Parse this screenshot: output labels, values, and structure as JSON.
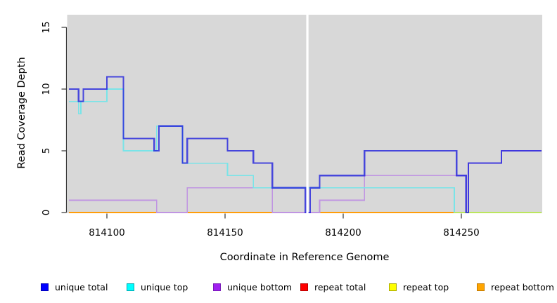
{
  "figure": {
    "x_axis": {
      "label": "Coordinate in Reference Genome",
      "tick_labels": [
        "814100",
        "814150",
        "814200",
        "814250"
      ],
      "ticks": [
        814100,
        814150,
        814200,
        814250
      ]
    },
    "y_axis": {
      "label": "Read Coverage Depth",
      "tick_labels": [
        "0",
        "5",
        "10",
        "15"
      ],
      "ticks": [
        0,
        5,
        10,
        15
      ]
    },
    "plot_background": "#d8d8d8",
    "outer_background": "#ffffff"
  },
  "chart_data": {
    "type": "line",
    "step": true,
    "title": "",
    "xlabel": "Coordinate in Reference Genome",
    "ylabel": "Read Coverage Depth",
    "x_range": [
      814084,
      814284
    ],
    "y_range": [
      0,
      16
    ],
    "x_ticks": [
      814100,
      814150,
      814200,
      814250
    ],
    "y_ticks": [
      0,
      5,
      10,
      15
    ],
    "grid": false,
    "legend_position": "bottom",
    "masked_region": {
      "x_start": 814184,
      "x_end": 814185.5,
      "color": "#ffffff",
      "note": "white vertical band, all series hidden; unique-total drops to 0 at its edges"
    },
    "series": [
      {
        "name": "repeat total",
        "color": "#dd2222",
        "opacity": 1,
        "width": 1.5,
        "points": [
          [
            814084,
            0
          ],
          [
            814247,
            0
          ]
        ]
      },
      {
        "name": "repeat bottom",
        "color": "#ff9d0a",
        "opacity": 1,
        "width": 1.8,
        "points": [
          [
            814084,
            0
          ],
          [
            814247,
            0
          ]
        ]
      },
      {
        "name": "unique bottom",
        "color": "#c095e2",
        "opacity": 1,
        "width": 1.7,
        "points": [
          [
            814084,
            1
          ],
          [
            814121,
            0
          ],
          [
            814134,
            2
          ],
          [
            814170,
            0
          ],
          [
            814190,
            1
          ],
          [
            814209,
            3
          ],
          [
            814252,
            0
          ],
          [
            814253,
            4
          ],
          [
            814267,
            5
          ],
          [
            814284,
            5
          ]
        ]
      },
      {
        "name": "unique top",
        "color": "#79e4e8",
        "opacity": 1,
        "width": 1.7,
        "points": [
          [
            814084,
            9
          ],
          [
            814088,
            8
          ],
          [
            814089,
            9
          ],
          [
            814100,
            10
          ],
          [
            814107,
            5
          ],
          [
            814121,
            7
          ],
          [
            814132,
            4
          ],
          [
            814151,
            3
          ],
          [
            814162,
            2
          ],
          [
            814247,
            0
          ],
          [
            814284,
            0
          ]
        ]
      },
      {
        "name": "repeat top",
        "color": "#e8e800",
        "opacity": 0.6,
        "width": 1.6,
        "points": [
          [
            814247,
            0
          ],
          [
            814284,
            0
          ]
        ]
      },
      {
        "name": "unique total",
        "color": "#1c1cdd",
        "opacity": 0.78,
        "width": 2.2,
        "points": [
          [
            814084,
            10
          ],
          [
            814088,
            9
          ],
          [
            814090,
            10
          ],
          [
            814100,
            11
          ],
          [
            814107,
            6
          ],
          [
            814120,
            5
          ],
          [
            814122,
            7
          ],
          [
            814132,
            4
          ],
          [
            814134,
            6
          ],
          [
            814151,
            5
          ],
          [
            814162,
            4
          ],
          [
            814170,
            2
          ],
          [
            814184,
            0
          ],
          [
            814186,
            2
          ],
          [
            814190,
            3
          ],
          [
            814209,
            5
          ],
          [
            814248,
            3
          ],
          [
            814252,
            0
          ],
          [
            814253,
            4
          ],
          [
            814267,
            5
          ],
          [
            814284,
            5
          ]
        ]
      }
    ],
    "overlap_notes": "unique total overlaps unique bottom at 814253-814284 (violet), overlaps unique top at 814122-814132 and 814170-814184 (bright blue); unique top at 0 blends with repeat top after 814247 (greenish zero line)"
  },
  "legend": {
    "items": [
      {
        "label": "unique total",
        "fill": "#0000ff",
        "border": "#0000b4"
      },
      {
        "label": "unique top",
        "fill": "#00ffff",
        "border": "#00a8b0"
      },
      {
        "label": "unique bottom",
        "fill": "#a020f0",
        "border": "#7818b8"
      },
      {
        "label": "repeat total",
        "fill": "#ff0000",
        "border": "#b80000"
      },
      {
        "label": "repeat top",
        "fill": "#ffff00",
        "border": "#a8a800"
      },
      {
        "label": "repeat bottom",
        "fill": "#ffa500",
        "border": "#c07800"
      }
    ]
  }
}
